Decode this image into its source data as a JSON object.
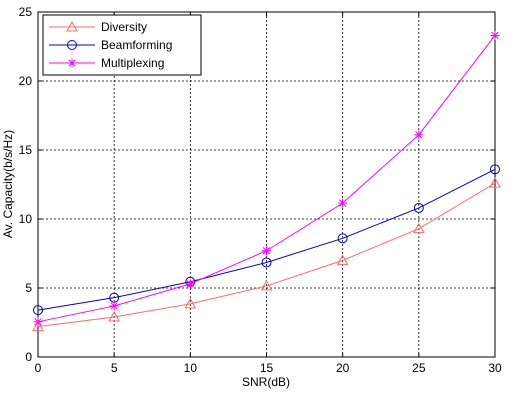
{
  "chart_data": {
    "type": "line",
    "title": "",
    "xlabel": "SNR(dB)",
    "ylabel": "Av. Capacity(b/s/Hz)",
    "xlim": [
      0,
      30
    ],
    "ylim": [
      0,
      25
    ],
    "xticks": [
      0,
      5,
      10,
      15,
      20,
      25,
      30
    ],
    "yticks": [
      0,
      5,
      10,
      15,
      20,
      25
    ],
    "grid": true,
    "legend_position": "top-left",
    "x": [
      0,
      5,
      10,
      15,
      20,
      25,
      30
    ],
    "series": [
      {
        "name": "Diversity",
        "color": "#ff6a6a",
        "marker": "triangle",
        "values": [
          2.2,
          2.9,
          3.85,
          5.15,
          7.0,
          9.3,
          12.6
        ]
      },
      {
        "name": "Beamforming",
        "color": "#0000cc",
        "marker": "circle",
        "values": [
          3.4,
          4.3,
          5.45,
          6.85,
          8.6,
          10.8,
          13.6
        ]
      },
      {
        "name": "Multiplexing",
        "color": "#ff00ff",
        "marker": "star",
        "values": [
          2.55,
          3.7,
          5.3,
          7.7,
          11.15,
          16.1,
          23.3
        ]
      }
    ]
  }
}
